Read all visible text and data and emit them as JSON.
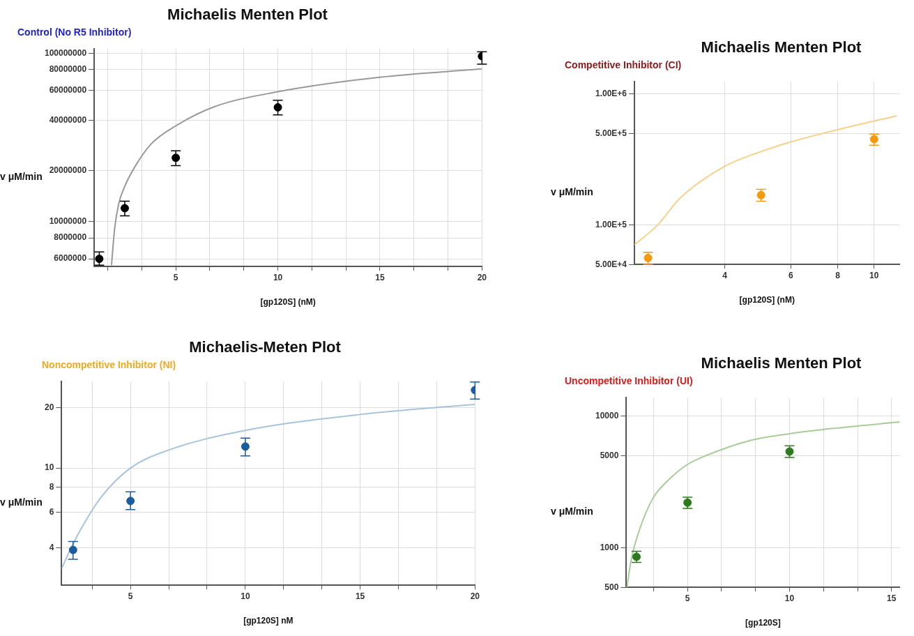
{
  "chart_data": [
    {
      "type": "scatter",
      "title": "Michaelis Menten Plot",
      "subtitle": "Control (No R5 Inhibitor)",
      "xlabel": "[gp120S] (nM)",
      "ylabel": "v μM/min",
      "log": "y",
      "grid": true,
      "xlim": [
        1,
        20
      ],
      "ylim": [
        5400000,
        106000000
      ],
      "xticks": [
        {
          "value": 1.667,
          "label": null
        },
        {
          "value": 3.333,
          "label": null
        },
        5,
        {
          "value": 6.667,
          "label": null
        },
        {
          "value": 8.333,
          "label": null
        },
        10,
        {
          "value": 11.667,
          "label": null
        },
        {
          "value": 13.333,
          "label": null
        },
        15,
        {
          "value": 16.667,
          "label": null
        },
        {
          "value": 18.333,
          "label": null
        },
        20
      ],
      "yticks": [
        6000000,
        8000000,
        10000000,
        20000000,
        40000000,
        60000000,
        80000000,
        100000000
      ],
      "series": [
        {
          "type": "line",
          "color": "#999999",
          "marker": "none",
          "x": [
            1.85,
            2.0,
            2.2,
            2.52,
            3.0,
            3.77,
            5,
            6.87,
            10,
            15,
            20
          ],
          "values": [
            5500000,
            9000000,
            12700000,
            16400000,
            21200000,
            28700000,
            37000000,
            48000000,
            59000000,
            72000000,
            80700000
          ]
        },
        {
          "type": "scatter",
          "color": "#000000",
          "marker": "circle",
          "x": [
            1.25,
            2.5,
            5,
            10,
            20
          ],
          "values": [
            6000000,
            12000000,
            23900000,
            47700000,
            96000000
          ],
          "errors": [
            [
              5500000,
              6600000
            ],
            [
              10800000,
              13200000
            ],
            [
              21500000,
              26300000
            ],
            [
              43000000,
              52600000
            ],
            [
              86000000,
              102000000
            ]
          ]
        }
      ]
    },
    {
      "type": "scatter",
      "title": "Michaelis Menten Plot",
      "subtitle": "Competitive Inhibitor (CI)",
      "xlabel": "[gp120S] (nM)",
      "ylabel": "v μM/min",
      "log": "xy",
      "grid": true,
      "xlim": [
        2.3,
        11.7
      ],
      "ylim": [
        50000,
        1240000
      ],
      "xticks": [
        4,
        6,
        8,
        10
      ],
      "yticks": [
        {
          "value": 50000,
          "label": "5.00E+4"
        },
        {
          "value": 100000,
          "label": "1.00E+5"
        },
        {
          "value": 500000,
          "label": "5.00E+5"
        },
        {
          "value": 1000000,
          "label": "1.00E+6"
        }
      ],
      "series": [
        {
          "type": "line",
          "color": "#f7d08e",
          "marker": "none",
          "x": [
            2.3,
            2.66,
            3.04,
            4,
            5.2,
            6,
            7.3,
            10,
            11.5
          ],
          "values": [
            70700,
            101000,
            160000,
            280000,
            378000,
            431000,
            500000,
            622000,
            679000
          ]
        },
        {
          "type": "scatter",
          "color": "#f59a0c",
          "marker": "circle",
          "x": [
            2.5,
            5,
            10
          ],
          "values": [
            56000,
            169000,
            452000
          ],
          "errors": [
            [
              50000,
              62000
            ],
            [
              152000,
              187000
            ],
            [
              406000,
              495000
            ]
          ]
        }
      ]
    },
    {
      "type": "scatter",
      "title": "Michaelis-Meten Plot",
      "subtitle": "Noncompetitive Inhibitor (NI)",
      "xlabel": "[gp120S] nM",
      "ylabel": "v μM/min",
      "log": "y",
      "grid": true,
      "xlim": [
        2,
        20
      ],
      "ylim": [
        2.6,
        27
      ],
      "xticks": [
        {
          "value": 3.333,
          "label": null
        },
        5,
        {
          "value": 6.667,
          "label": null
        },
        {
          "value": 8.333,
          "label": null
        },
        10,
        {
          "value": 11.667,
          "label": null
        },
        {
          "value": 13.333,
          "label": null
        },
        15,
        {
          "value": 16.667,
          "label": null
        },
        {
          "value": 18.333,
          "label": null
        },
        20
      ],
      "yticks": [
        4,
        6,
        8,
        10,
        20
      ],
      "series": [
        {
          "type": "line",
          "color": "#a8c4dc",
          "marker": "none",
          "x": [
            2,
            2.3,
            2.86,
            3.74,
            5,
            6.57,
            10,
            15,
            20
          ],
          "values": [
            3.14,
            3.75,
            5.0,
            7.2,
            10,
            12.2,
            15.4,
            18.5,
            20.8
          ]
        },
        {
          "type": "scatter",
          "color": "#1a5c9c",
          "marker": "circle",
          "x": [
            2.5,
            5,
            10,
            20
          ],
          "values": [
            3.9,
            6.85,
            12.8,
            24.5
          ],
          "errors": [
            [
              3.5,
              4.3
            ],
            [
              6.2,
              7.6
            ],
            [
              11.5,
              14.1
            ],
            [
              22.1,
              26.9
            ]
          ]
        }
      ]
    },
    {
      "type": "scatter",
      "title": "Michaelis Menten Plot",
      "subtitle": "Uncompetitive Inhibitor (UI)",
      "xlabel": "[gp120S]",
      "ylabel": "v μM/min",
      "log": "y",
      "grid": true,
      "xlim": [
        2,
        15.4
      ],
      "ylim": [
        500,
        13800
      ],
      "xticks": [
        {
          "value": 3.333,
          "label": null
        },
        5,
        {
          "value": 6.667,
          "label": null
        },
        {
          "value": 8.333,
          "label": null
        },
        10,
        {
          "value": 11.667,
          "label": null
        },
        {
          "value": 13.333,
          "label": null
        },
        15
      ],
      "yticks": [
        500,
        1000,
        5000,
        10000
      ],
      "series": [
        {
          "type": "line",
          "color": "#a8cc98",
          "marker": "none",
          "x": [
            2.03,
            2.24,
            2.56,
            3.3,
            4.05,
            5,
            5.95,
            8.06,
            10,
            12.3,
            15.4
          ],
          "values": [
            500,
            810,
            1250,
            2370,
            3250,
            4290,
            5040,
            6520,
            7340,
            8100,
            9020
          ]
        },
        {
          "type": "scatter",
          "color": "#2e7a1e",
          "marker": "circle",
          "x": [
            2.5,
            5,
            10
          ],
          "values": [
            853,
            2200,
            5380
          ],
          "errors": [
            [
              773,
              938
            ],
            [
              1990,
              2420
            ],
            [
              4840,
              5940
            ]
          ]
        }
      ]
    }
  ]
}
